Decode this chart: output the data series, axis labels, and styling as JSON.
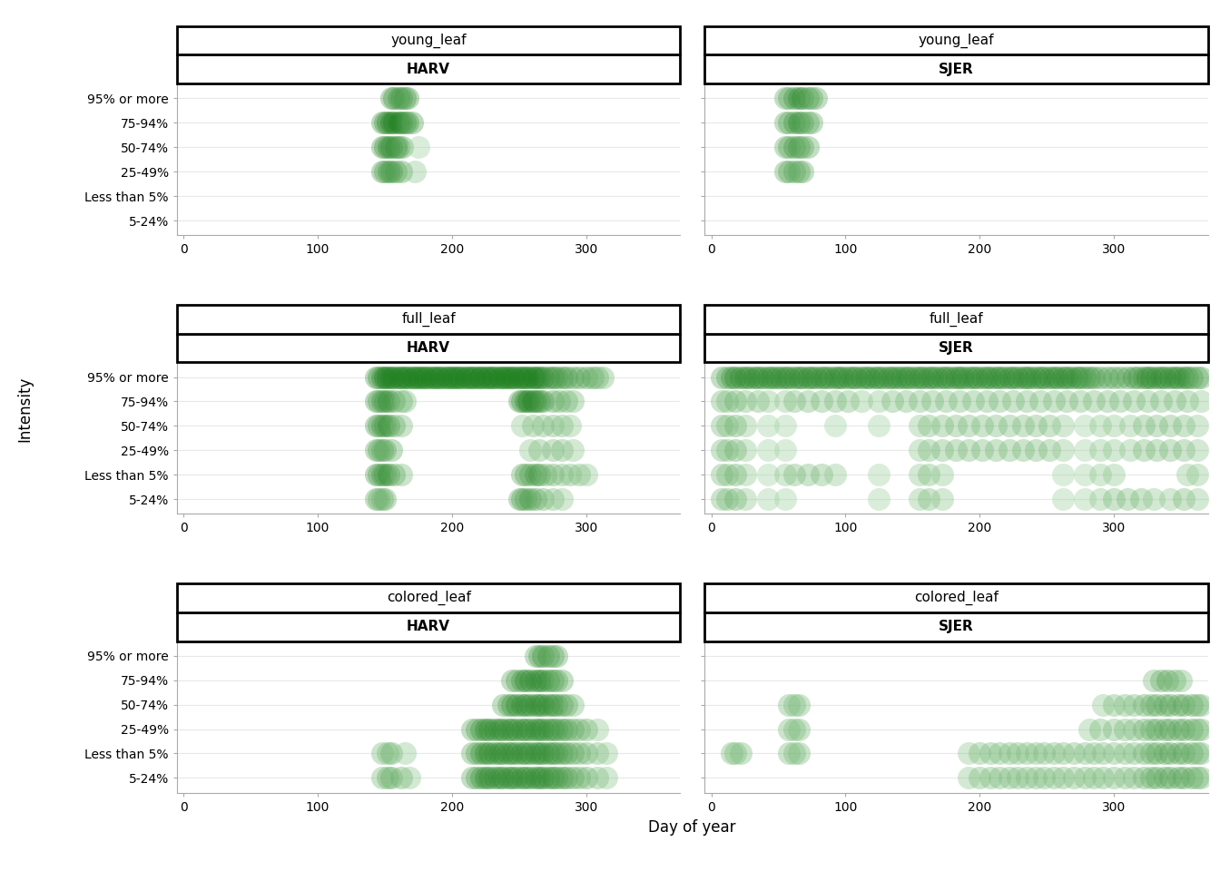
{
  "phenophases": [
    "young_leaf",
    "full_leaf",
    "colored_leaf"
  ],
  "sites": [
    "HARV",
    "SJER"
  ],
  "intensities": [
    "95% or more",
    "75-94%",
    "50-74%",
    "25-49%",
    "Less than 5%",
    "5-24%"
  ],
  "ylabel": "Intensity",
  "xlabel": "Day of year",
  "xlim_harv": [
    -5,
    370
  ],
  "xlim_sjer": [
    -5,
    370
  ],
  "xticks": [
    0,
    100,
    200,
    300
  ],
  "dot_color": "#2d8b2d",
  "dot_alpha": 0.4,
  "dot_size": 18,
  "data": {
    "young_leaf": {
      "HARV": {
        "95% or more": [
          155,
          157,
          160,
          162,
          165,
          167
        ],
        "75-94%": [
          148,
          150,
          152,
          155,
          157,
          160,
          162,
          165,
          167,
          170
        ],
        "50-74%": [
          148,
          150,
          153,
          155,
          158,
          160,
          163,
          175
        ],
        "25-49%": [
          148,
          150,
          153,
          155,
          158,
          162,
          172
        ],
        "Less than 5%": [],
        "5-24%": []
      },
      "SJER": {
        "95% or more": [
          55,
          58,
          62,
          65,
          68,
          72,
          75,
          78
        ],
        "75-94%": [
          55,
          58,
          62,
          65,
          68,
          72,
          75
        ],
        "50-74%": [
          55,
          58,
          62,
          65,
          68,
          72
        ],
        "25-49%": [
          55,
          58,
          62,
          65,
          68
        ],
        "Less than 5%": [],
        "5-24%": []
      }
    },
    "full_leaf": {
      "HARV": {
        "95% or more": [
          143,
          145,
          148,
          150,
          152,
          155,
          157,
          160,
          162,
          165,
          167,
          170,
          172,
          175,
          177,
          180,
          182,
          185,
          187,
          190,
          192,
          195,
          197,
          200,
          202,
          205,
          207,
          210,
          212,
          215,
          217,
          220,
          222,
          225,
          227,
          230,
          232,
          235,
          237,
          240,
          242,
          245,
          247,
          250,
          252,
          255,
          257,
          260,
          262,
          265,
          268,
          272,
          275,
          278,
          282,
          285,
          290,
          295,
          300,
          305,
          308,
          312
        ],
        "75-94%": [
          143,
          145,
          148,
          150,
          153,
          157,
          162,
          165,
          250,
          252,
          255,
          257,
          260,
          262,
          265,
          268,
          275,
          280,
          285,
          290
        ],
        "50-74%": [
          143,
          145,
          148,
          150,
          153,
          157,
          162,
          252,
          260,
          268,
          275,
          282,
          288
        ],
        "25-49%": [
          143,
          145,
          148,
          150,
          155,
          258,
          265,
          275,
          282,
          290
        ],
        "Less than 5%": [
          143,
          145,
          148,
          150,
          153,
          157,
          162,
          252,
          255,
          258,
          262,
          265,
          270,
          275,
          282,
          288,
          295,
          300
        ],
        "5-24%": [
          143,
          145,
          148,
          150,
          250,
          252,
          255,
          258,
          262,
          268,
          275,
          282
        ]
      },
      "SJER": {
        "95% or more": [
          8,
          12,
          15,
          18,
          22,
          25,
          28,
          32,
          35,
          38,
          42,
          45,
          48,
          52,
          55,
          58,
          62,
          65,
          68,
          72,
          75,
          78,
          82,
          85,
          88,
          92,
          95,
          98,
          102,
          105,
          108,
          112,
          115,
          118,
          122,
          125,
          128,
          132,
          135,
          138,
          142,
          145,
          148,
          152,
          155,
          158,
          162,
          165,
          168,
          172,
          175,
          178,
          182,
          185,
          188,
          192,
          195,
          198,
          202,
          205,
          208,
          212,
          215,
          218,
          222,
          225,
          228,
          232,
          235,
          238,
          242,
          245,
          248,
          252,
          255,
          258,
          262,
          265,
          268,
          272,
          275,
          278,
          282,
          285,
          290,
          295,
          300,
          305,
          310,
          315,
          318,
          322,
          325,
          328,
          332,
          335,
          338,
          342,
          345,
          348,
          352,
          355,
          358,
          362,
          365
        ],
        "75-94%": [
          8,
          12,
          18,
          25,
          35,
          42,
          55,
          62,
          72,
          82,
          92,
          102,
          112,
          125,
          135,
          145,
          155,
          165,
          175,
          185,
          195,
          205,
          215,
          225,
          235,
          245,
          255,
          265,
          275,
          285,
          295,
          305,
          315,
          325,
          335,
          345,
          355,
          365
        ],
        "50-74%": [
          8,
          12,
          18,
          25,
          42,
          55,
          92,
          125,
          155,
          162,
          172,
          182,
          192,
          202,
          212,
          222,
          232,
          242,
          252,
          262,
          278,
          290,
          300,
          312,
          322,
          332,
          342,
          352,
          362
        ],
        "25-49%": [
          8,
          12,
          18,
          25,
          42,
          55,
          155,
          162,
          172,
          182,
          192,
          202,
          212,
          222,
          232,
          242,
          252,
          262,
          278,
          290,
          300,
          312,
          322,
          332,
          342,
          352,
          362
        ],
        "Less than 5%": [
          8,
          12,
          18,
          25,
          42,
          55,
          62,
          72,
          82,
          92,
          125,
          155,
          162,
          172,
          262,
          278,
          290,
          300,
          355,
          362
        ],
        "5-24%": [
          8,
          12,
          18,
          25,
          42,
          55,
          125,
          155,
          162,
          172,
          262,
          278,
          290,
          300,
          310,
          320,
          330,
          342,
          352,
          362
        ]
      }
    },
    "colored_leaf": {
      "HARV": {
        "95% or more": [
          262,
          265,
          268,
          272,
          275,
          278
        ],
        "75-94%": [
          245,
          248,
          252,
          255,
          258,
          262,
          265,
          268,
          272,
          275,
          278,
          282
        ],
        "50-74%": [
          238,
          242,
          245,
          248,
          252,
          255,
          258,
          262,
          265,
          268,
          272,
          275,
          278,
          282,
          285,
          290
        ],
        "25-49%": [
          215,
          218,
          222,
          225,
          228,
          232,
          235,
          238,
          242,
          245,
          248,
          252,
          255,
          258,
          262,
          265,
          268,
          272,
          275,
          278,
          282,
          285,
          290,
          295,
          300,
          308
        ],
        "Less than 5%": [
          148,
          152,
          155,
          165,
          215,
          218,
          222,
          225,
          228,
          232,
          235,
          238,
          242,
          245,
          248,
          252,
          255,
          258,
          262,
          265,
          268,
          272,
          275,
          278,
          282,
          285,
          290,
          295,
          300,
          308,
          315
        ],
        "5-24%": [
          148,
          152,
          155,
          162,
          168,
          215,
          218,
          222,
          225,
          228,
          232,
          235,
          238,
          242,
          245,
          248,
          252,
          255,
          258,
          262,
          265,
          268,
          272,
          275,
          278,
          282,
          285,
          290,
          295,
          300,
          308,
          315
        ]
      },
      "SJER": {
        "95% or more": [],
        "75-94%": [
          330,
          335,
          340,
          345,
          350
        ],
        "50-74%": [
          58,
          62,
          65,
          292,
          300,
          308,
          315,
          322,
          328,
          332,
          338,
          342,
          348,
          352,
          358,
          362,
          365
        ],
        "25-49%": [
          58,
          62,
          65,
          282,
          290,
          300,
          308,
          315,
          322,
          328,
          332,
          338,
          342,
          348,
          352,
          358,
          362,
          365
        ],
        "Less than 5%": [
          15,
          18,
          22,
          58,
          62,
          65,
          192,
          200,
          208,
          215,
          222,
          228,
          235,
          242,
          248,
          255,
          262,
          270,
          278,
          285,
          292,
          300,
          308,
          315,
          322,
          328,
          332,
          338,
          342,
          348,
          352,
          358,
          362,
          365
        ],
        "5-24%": [
          192,
          200,
          208,
          215,
          222,
          228,
          235,
          242,
          248,
          255,
          262,
          270,
          278,
          285,
          292,
          300,
          308,
          315,
          322,
          328,
          332,
          338,
          342,
          348,
          352,
          358,
          362,
          365
        ]
      }
    }
  },
  "background_color": "#ffffff",
  "strip_bg": "#ffffff",
  "strip_border": "#000000",
  "strip_lw": 2.0,
  "grid_color": "#e8e8e8",
  "axis_color": "#808080",
  "label_fontsize": 11,
  "tick_fontsize": 10,
  "strip_fontsize": 11
}
